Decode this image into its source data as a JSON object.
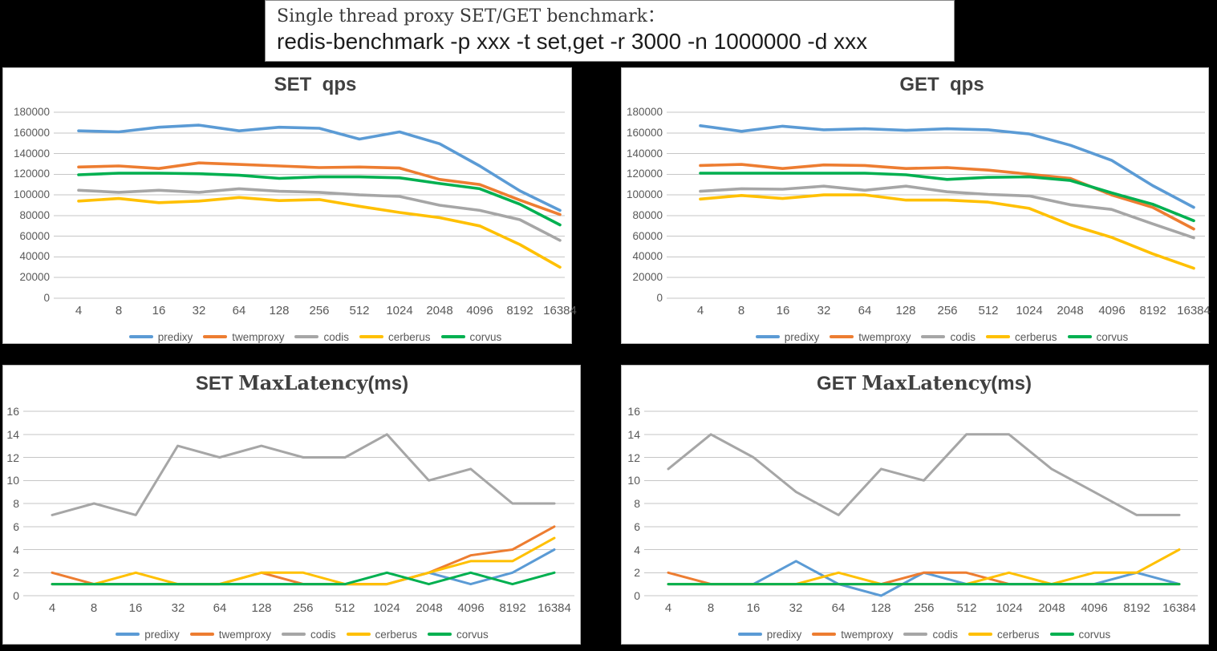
{
  "header": {
    "title_line1": "Single thread proxy SET/GET benchmark：",
    "title_line2": "redis-benchmark -p xxx -t set,get -r 3000 -n 1000000 -d xxx"
  },
  "palette": {
    "predixy": "#5B9BD5",
    "twemproxy": "#ED7D31",
    "codis": "#A6A6A6",
    "cerberus": "#FFC000",
    "corvus": "#00B050",
    "gridline": "#C6C6C6",
    "axis_label": "#595959",
    "chart_title": "#404040",
    "panel_background": "#FFFFFF",
    "page_background": "#000000"
  },
  "legend_series": [
    "predixy",
    "twemproxy",
    "codis",
    "cerberus",
    "corvus"
  ],
  "chart_data": [
    {
      "id": "set-qps",
      "type": "line",
      "title_parts": [
        {
          "text": "SET  qps",
          "serif": false
        }
      ],
      "xlabel": "",
      "ylabel": "",
      "ylim": [
        0,
        180000
      ],
      "ytick_step": 20000,
      "ytick_labels": [
        "180000",
        "160000",
        "140000",
        "120000",
        "100000",
        "80000",
        "60000",
        "40000",
        "20000",
        "0"
      ],
      "grid": true,
      "legend_position": "bottom",
      "x_categories": [
        "4",
        "8",
        "16",
        "32",
        "64",
        "128",
        "256",
        "512",
        "1024",
        "2048",
        "4096",
        "8192",
        "16384"
      ],
      "series": [
        {
          "name": "predixy",
          "values": [
            162000,
            161000,
            165500,
            167500,
            162000,
            165500,
            164500,
            154000,
            161000,
            149500,
            128000,
            104000,
            85000
          ]
        },
        {
          "name": "twemproxy",
          "values": [
            127000,
            128000,
            125500,
            131000,
            129500,
            128000,
            126500,
            127000,
            126000,
            115000,
            110000,
            95000,
            81000
          ]
        },
        {
          "name": "codis",
          "values": [
            104500,
            102500,
            104500,
            102500,
            106000,
            103500,
            102500,
            100000,
            98500,
            90000,
            85000,
            76000,
            56000
          ]
        },
        {
          "name": "cerberus",
          "values": [
            94000,
            96500,
            92500,
            94000,
            97500,
            94500,
            95500,
            89000,
            83000,
            78000,
            70000,
            52000,
            30000
          ]
        },
        {
          "name": "corvus",
          "values": [
            119500,
            121000,
            121000,
            120500,
            119000,
            116000,
            117500,
            117500,
            116500,
            111000,
            106000,
            91000,
            71000
          ]
        }
      ]
    },
    {
      "id": "get-qps",
      "type": "line",
      "title_parts": [
        {
          "text": "GET  qps",
          "serif": false
        }
      ],
      "xlabel": "",
      "ylabel": "",
      "ylim": [
        0,
        180000
      ],
      "ytick_step": 20000,
      "ytick_labels": [
        "180000",
        "160000",
        "140000",
        "120000",
        "100000",
        "80000",
        "60000",
        "40000",
        "20000",
        "0"
      ],
      "grid": true,
      "legend_position": "bottom",
      "x_categories": [
        "4",
        "8",
        "16",
        "32",
        "64",
        "128",
        "256",
        "512",
        "1024",
        "2048",
        "4096",
        "8192",
        "16384"
      ],
      "series": [
        {
          "name": "predixy",
          "values": [
            167000,
            161500,
            166500,
            163000,
            164000,
            162500,
            164000,
            163000,
            159000,
            148000,
            133500,
            109000,
            88000
          ]
        },
        {
          "name": "twemproxy",
          "values": [
            128500,
            129500,
            125500,
            129000,
            128500,
            125500,
            126500,
            124000,
            120000,
            116000,
            100000,
            88000,
            67000
          ]
        },
        {
          "name": "codis",
          "values": [
            103500,
            106000,
            105500,
            108500,
            104500,
            108500,
            103000,
            100500,
            99000,
            90500,
            86000,
            72000,
            58500
          ]
        },
        {
          "name": "cerberus",
          "values": [
            96000,
            99500,
            96500,
            100000,
            100000,
            95000,
            95000,
            93000,
            87000,
            71000,
            59000,
            43000,
            29000
          ]
        },
        {
          "name": "corvus",
          "values": [
            121000,
            121000,
            121000,
            121000,
            121000,
            119500,
            115000,
            117000,
            117500,
            114000,
            102000,
            91000,
            75000
          ]
        }
      ]
    },
    {
      "id": "set-maxlatency",
      "type": "line",
      "title_parts": [
        {
          "text": "SET ",
          "serif": false
        },
        {
          "text": "MaxLatency",
          "serif": true
        },
        {
          "text": "(ms)",
          "serif": false
        }
      ],
      "xlabel": "",
      "ylabel": "",
      "ylim": [
        0,
        16
      ],
      "ytick_step": 2,
      "ytick_labels": [
        "16",
        "14",
        "12",
        "10",
        "8",
        "6",
        "4",
        "2",
        "0"
      ],
      "grid": true,
      "legend_position": "bottom",
      "x_categories": [
        "4",
        "8",
        "16",
        "32",
        "64",
        "128",
        "256",
        "512",
        "1024",
        "2048",
        "4096",
        "8192",
        "16384"
      ],
      "series": [
        {
          "name": "predixy",
          "values": [
            1,
            1,
            1,
            1,
            1,
            1,
            1,
            1,
            1,
            2,
            1,
            2,
            4
          ]
        },
        {
          "name": "twemproxy",
          "values": [
            2,
            1,
            1,
            1,
            1,
            2,
            1,
            1,
            1,
            2,
            3.5,
            4,
            6
          ]
        },
        {
          "name": "codis",
          "values": [
            7,
            8,
            7,
            13,
            12,
            13,
            12,
            12,
            14,
            10,
            11,
            8,
            8
          ]
        },
        {
          "name": "cerberus",
          "values": [
            1,
            1,
            2,
            1,
            1,
            2,
            2,
            1,
            1,
            2,
            3,
            3,
            5
          ]
        },
        {
          "name": "corvus",
          "values": [
            1,
            1,
            1,
            1,
            1,
            1,
            1,
            1,
            2,
            1,
            2,
            1,
            2
          ]
        }
      ]
    },
    {
      "id": "get-maxlatency",
      "type": "line",
      "title_parts": [
        {
          "text": "GET ",
          "serif": false
        },
        {
          "text": "MaxLatency",
          "serif": true
        },
        {
          "text": "(ms)",
          "serif": false
        }
      ],
      "xlabel": "",
      "ylabel": "",
      "ylim": [
        0,
        16
      ],
      "ytick_step": 2,
      "ytick_labels": [
        "16",
        "14",
        "12",
        "10",
        "8",
        "6",
        "4",
        "2",
        "0"
      ],
      "grid": true,
      "legend_position": "bottom",
      "x_categories": [
        "4",
        "8",
        "16",
        "32",
        "64",
        "128",
        "256",
        "512",
        "1024",
        "2048",
        "4096",
        "8192",
        "16384"
      ],
      "series": [
        {
          "name": "predixy",
          "values": [
            1,
            1,
            1,
            3,
            1,
            0,
            2,
            1,
            1,
            1,
            1,
            2,
            1
          ]
        },
        {
          "name": "twemproxy",
          "values": [
            2,
            1,
            1,
            1,
            1,
            1,
            2,
            2,
            1,
            1,
            1,
            1,
            1
          ]
        },
        {
          "name": "codis",
          "values": [
            11,
            14,
            12,
            9,
            7,
            11,
            10,
            14,
            14,
            11,
            9,
            7,
            7
          ]
        },
        {
          "name": "cerberus",
          "values": [
            1,
            1,
            1,
            1,
            2,
            1,
            1,
            1,
            2,
            1,
            2,
            2,
            4
          ]
        },
        {
          "name": "corvus",
          "values": [
            1,
            1,
            1,
            1,
            1,
            1,
            1,
            1,
            1,
            1,
            1,
            1,
            1
          ]
        }
      ]
    }
  ]
}
